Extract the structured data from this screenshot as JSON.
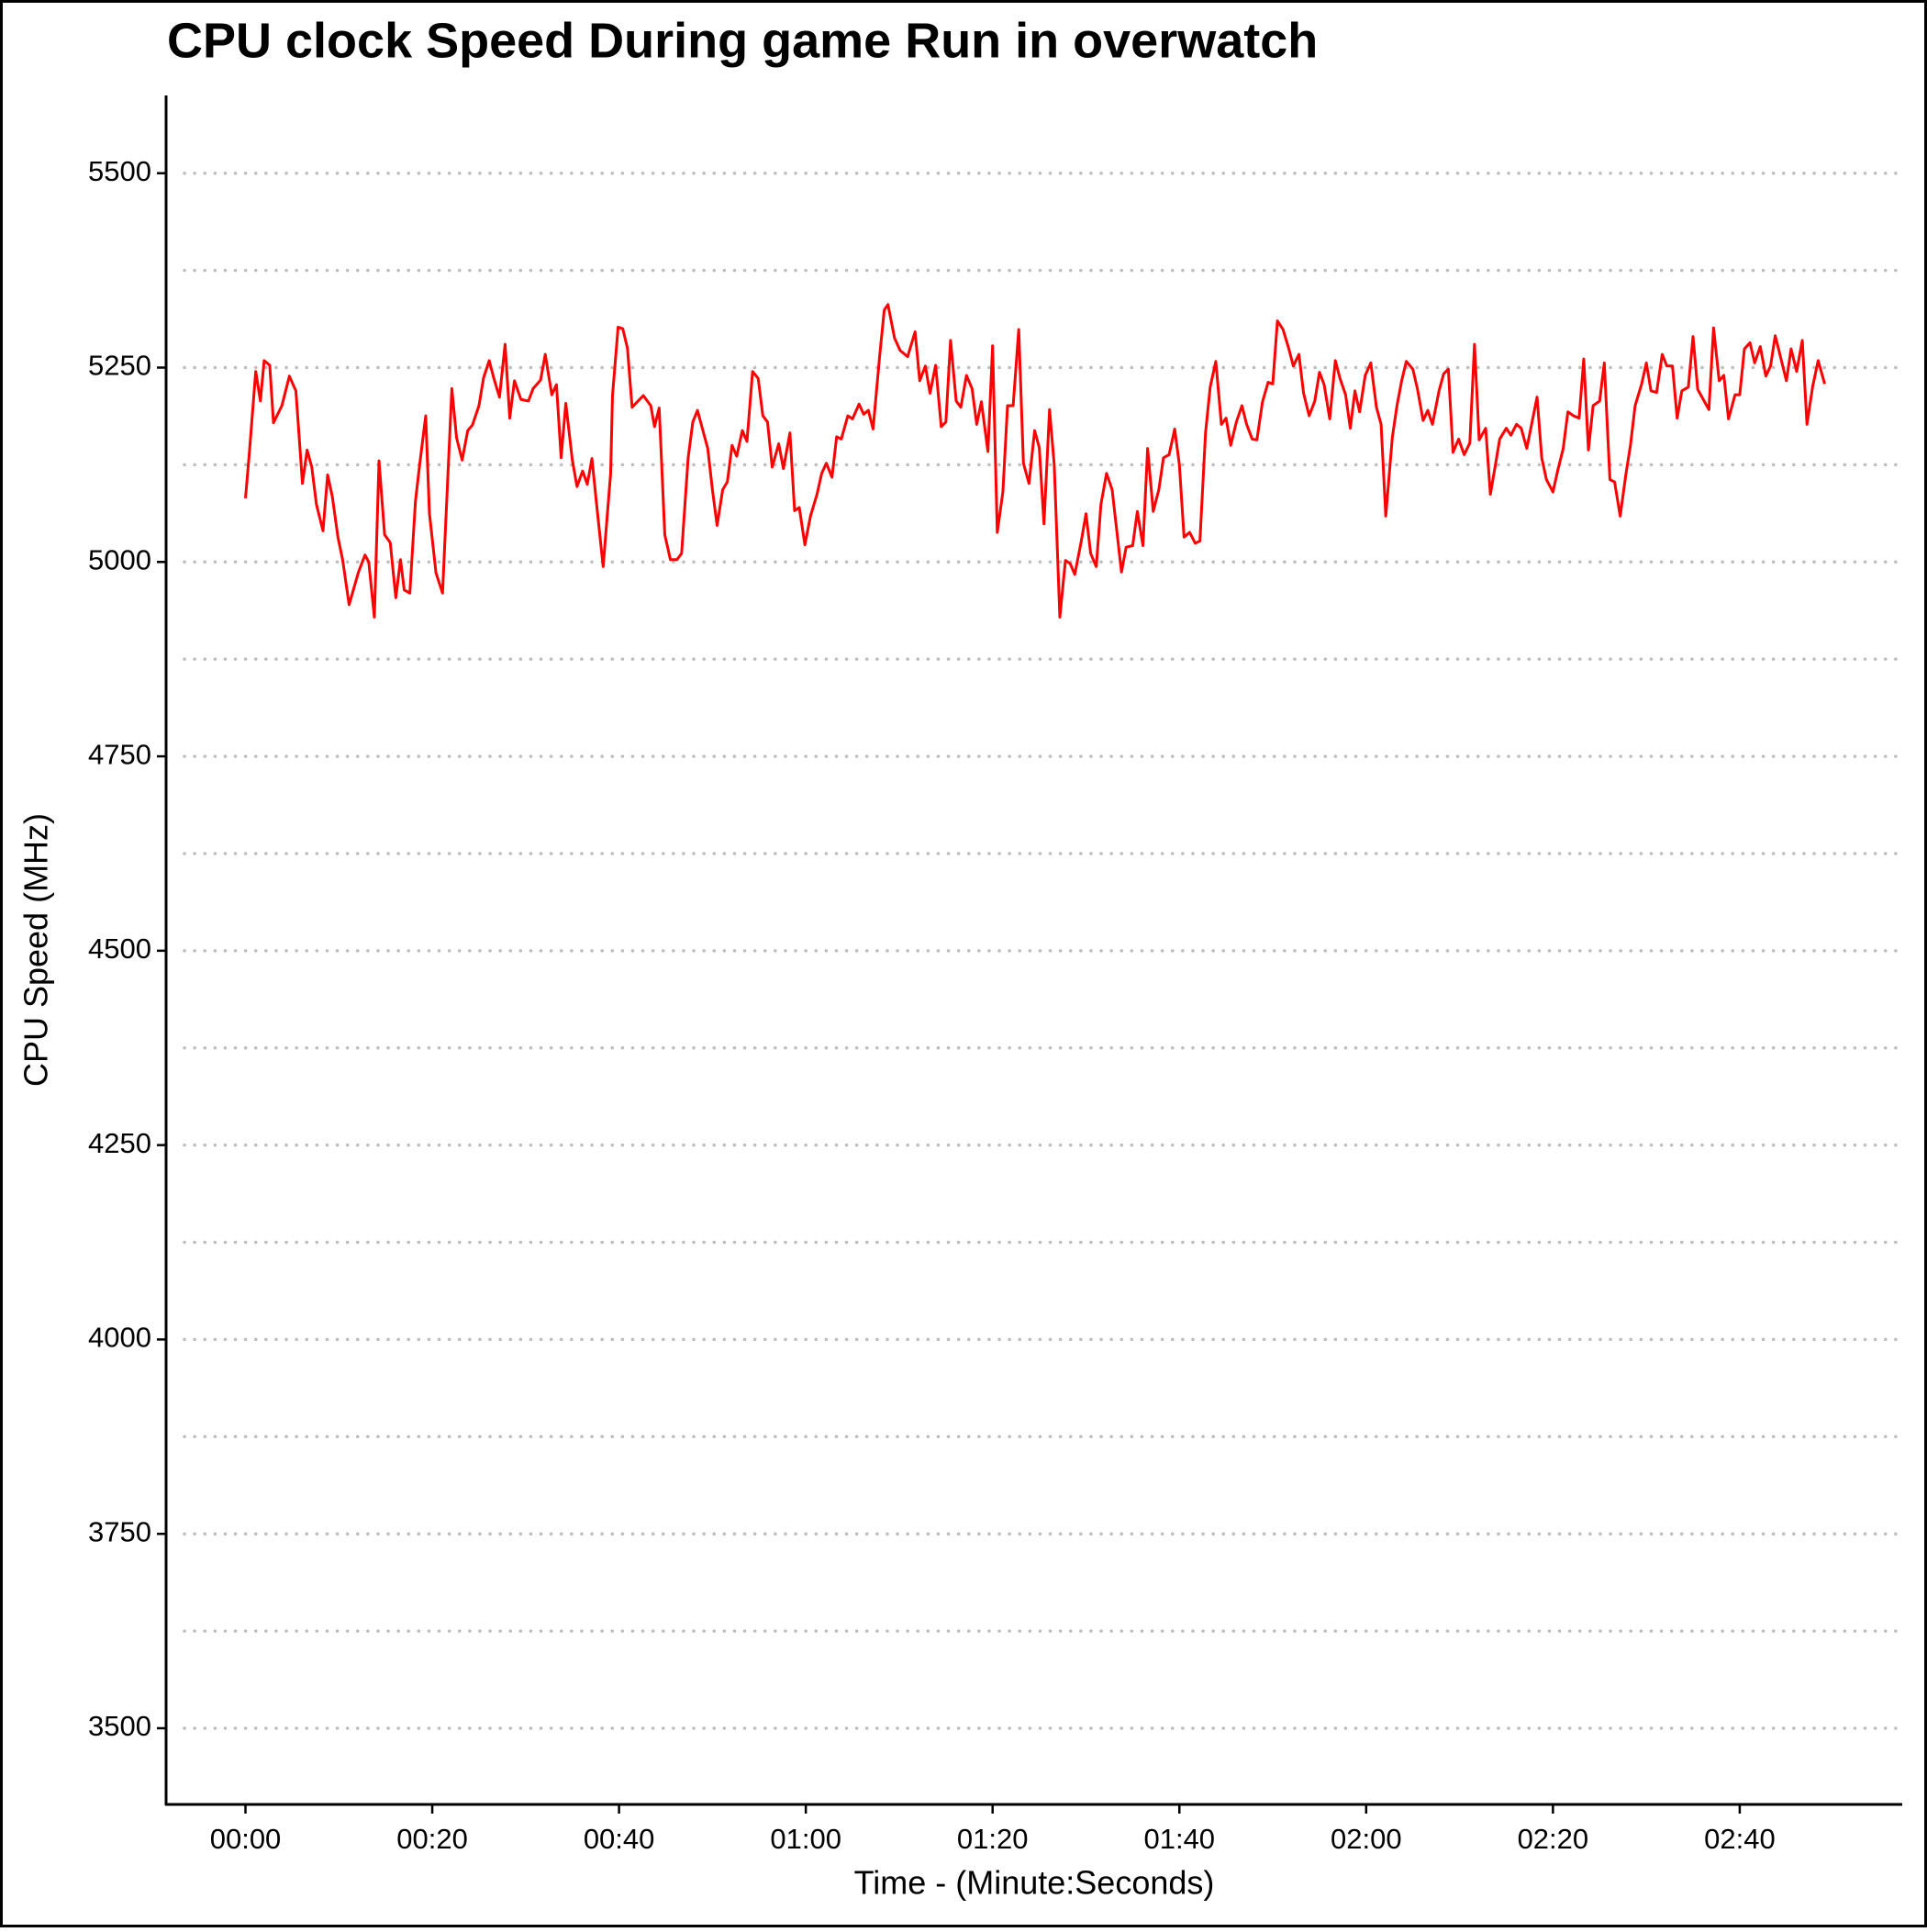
{
  "chart_data": {
    "type": "line",
    "title": "CPU clock Speed During game Run in overwatch",
    "x_label": "Time - (Minute:Seconds)",
    "y_label": "CPU Speed (MHz)",
    "color": "#ff0000",
    "grid": true,
    "xlim": [
      -8.5,
      177.4
    ],
    "ylim": [
      3402,
      5600
    ],
    "xticks": [
      {
        "value": 0,
        "label": "00:00"
      },
      {
        "value": 20,
        "label": "00:20"
      },
      {
        "value": 40,
        "label": "00:40"
      },
      {
        "value": 60,
        "label": "01:00"
      },
      {
        "value": 80,
        "label": "01:20"
      },
      {
        "value": 100,
        "label": "01:40"
      },
      {
        "value": 120,
        "label": "02:00"
      },
      {
        "value": 140,
        "label": "02:20"
      },
      {
        "value": 160,
        "label": "02:40"
      }
    ],
    "yticks": [
      3500,
      3750,
      4000,
      4250,
      4500,
      4750,
      5000,
      5250,
      5500
    ],
    "y_minor_ticks": [
      3625,
      3875,
      4125,
      4375,
      4625,
      4875,
      5125,
      5375
    ],
    "x": [
      0,
      0.4,
      1.1,
      1.6,
      2.0,
      2.6,
      3.0,
      3.9,
      4.7,
      5.4,
      6.1,
      6.6,
      7.1,
      7.6,
      8.3,
      8.8,
      9.3,
      9.9,
      10.4,
      11.1,
      12.1,
      12.8,
      13.2,
      13.8,
      14.3,
      14.9,
      15.5,
      16.1,
      16.6,
      17.0,
      17.6,
      18.2,
      18.7,
      19.3,
      19.7,
      20.4,
      21.1,
      22.1,
      22.6,
      23.2,
      23.8,
      24.3,
      25.0,
      25.5,
      26.1,
      26.6,
      27.2,
      27.8,
      28.3,
      28.8,
      29.5,
      30.3,
      30.8,
      31.6,
      32.1,
      32.8,
      33.3,
      33.8,
      34.3,
      35.0,
      35.5,
      36.1,
      36.6,
      37.1,
      37.6,
      38.3,
      39.1,
      39.3,
      39.9,
      40.4,
      40.9,
      41.4,
      42.6,
      43.4,
      43.8,
      44.3,
      44.9,
      45.5,
      46.2,
      46.7,
      47.4,
      47.9,
      48.4,
      49.5,
      50.0,
      50.5,
      51.1,
      51.6,
      52.1,
      52.6,
      53.2,
      53.7,
      54.3,
      54.9,
      55.4,
      55.9,
      56.4,
      57.1,
      57.6,
      58.3,
      58.8,
      59.3,
      59.9,
      60.5,
      61.2,
      61.7,
      62.2,
      62.8,
      63.3,
      63.8,
      64.5,
      65.0,
      65.7,
      66.2,
      66.7,
      67.2,
      67.9,
      68.4,
      68.8,
      69.5,
      70.1,
      70.9,
      71.7,
      72.2,
      72.8,
      73.3,
      73.9,
      74.5,
      75.0,
      75.5,
      76.1,
      76.6,
      77.2,
      77.8,
      78.3,
      78.8,
      79.5,
      80.0,
      80.5,
      81.1,
      81.6,
      82.2,
      82.8,
      83.3,
      83.9,
      84.5,
      85.0,
      85.5,
      86.1,
      86.6,
      87.2,
      87.8,
      88.3,
      88.8,
      89.5,
      90.0,
      90.5,
      91.1,
      91.6,
      92.2,
      92.8,
      93.3,
      93.8,
      94.3,
      95.0,
      95.5,
      96.1,
      96.6,
      97.2,
      97.8,
      98.3,
      98.9,
      99.5,
      100.0,
      100.5,
      101.1,
      101.7,
      102.2,
      102.8,
      103.3,
      103.9,
      104.5,
      105.0,
      105.5,
      106.1,
      106.7,
      107.2,
      107.8,
      108.3,
      108.9,
      109.5,
      110.0,
      110.5,
      111.1,
      111.7,
      112.2,
      112.8,
      113.3,
      113.9,
      114.5,
      115.0,
      115.5,
      116.1,
      116.7,
      117.2,
      117.8,
      118.3,
      118.8,
      119.3,
      119.9,
      120.5,
      121.1,
      121.6,
      122.1,
      122.8,
      123.3,
      123.8,
      124.3,
      125.0,
      125.5,
      126.1,
      126.6,
      127.1,
      127.8,
      128.3,
      128.8,
      129.3,
      129.9,
      130.5,
      131.1,
      131.6,
      132.1,
      132.8,
      133.3,
      133.8,
      134.3,
      135.0,
      135.5,
      136.1,
      136.6,
      137.2,
      137.8,
      138.3,
      138.8,
      139.3,
      140.0,
      140.5,
      141.1,
      141.6,
      142.2,
      142.8,
      143.3,
      143.8,
      144.3,
      145.0,
      145.5,
      146.1,
      146.6,
      147.2,
      147.8,
      148.3,
      148.8,
      149.5,
      150.0,
      150.5,
      151.1,
      151.7,
      152.2,
      152.8,
      153.3,
      153.8,
      154.5,
      155.0,
      155.5,
      156.1,
      156.7,
      157.2,
      157.8,
      158.3,
      158.8,
      159.5,
      160.0,
      160.5,
      161.1,
      161.6,
      162.2,
      162.8,
      163.3,
      163.8,
      164.3,
      165.0,
      165.5,
      166.1,
      166.7,
      167.2,
      167.8,
      168.4,
      169.1
    ],
    "values": [
      5082,
      5138,
      5245,
      5207,
      5259,
      5253,
      5179,
      5201,
      5239,
      5220,
      5101,
      5144,
      5122,
      5074,
      5040,
      5112,
      5084,
      5032,
      5003,
      4945,
      4987,
      5009,
      5000,
      4929,
      5130,
      5035,
      5025,
      4954,
      5003,
      4964,
      4960,
      5078,
      5130,
      5188,
      5062,
      4986,
      4960,
      5223,
      5160,
      5131,
      5169,
      5176,
      5201,
      5237,
      5259,
      5236,
      5212,
      5280,
      5185,
      5233,
      5209,
      5207,
      5223,
      5234,
      5267,
      5215,
      5228,
      5134,
      5204,
      5131,
      5097,
      5117,
      5100,
      5133,
      5074,
      4994,
      5114,
      5214,
      5302,
      5300,
      5275,
      5199,
      5214,
      5201,
      5174,
      5198,
      5035,
      5003,
      5003,
      5011,
      5134,
      5180,
      5195,
      5146,
      5093,
      5047,
      5093,
      5103,
      5150,
      5136,
      5169,
      5155,
      5245,
      5236,
      5188,
      5180,
      5122,
      5152,
      5120,
      5166,
      5066,
      5070,
      5022,
      5059,
      5087,
      5114,
      5127,
      5109,
      5161,
      5158,
      5188,
      5184,
      5203,
      5190,
      5195,
      5171,
      5264,
      5324,
      5331,
      5288,
      5272,
      5264,
      5296,
      5233,
      5252,
      5217,
      5253,
      5174,
      5180,
      5285,
      5207,
      5199,
      5240,
      5223,
      5177,
      5206,
      5142,
      5278,
      5038,
      5090,
      5201,
      5201,
      5299,
      5127,
      5101,
      5169,
      5147,
      5049,
      5196,
      5125,
      4929,
      5002,
      4998,
      4984,
      5027,
      5062,
      5011,
      4994,
      5074,
      5114,
      5093,
      5040,
      4987,
      5019,
      5021,
      5065,
      5021,
      5146,
      5065,
      5093,
      5134,
      5138,
      5171,
      5125,
      5032,
      5038,
      5024,
      5027,
      5166,
      5225,
      5258,
      5177,
      5185,
      5150,
      5180,
      5201,
      5177,
      5158,
      5157,
      5206,
      5231,
      5229,
      5310,
      5299,
      5275,
      5252,
      5267,
      5217,
      5188,
      5207,
      5244,
      5228,
      5184,
      5259,
      5236,
      5215,
      5172,
      5220,
      5193,
      5240,
      5256,
      5199,
      5177,
      5059,
      5160,
      5201,
      5233,
      5258,
      5248,
      5222,
      5182,
      5195,
      5177,
      5220,
      5242,
      5248,
      5141,
      5158,
      5138,
      5153,
      5280,
      5157,
      5172,
      5087,
      5122,
      5158,
      5172,
      5163,
      5177,
      5172,
      5146,
      5182,
      5212,
      5134,
      5106,
      5090,
      5117,
      5146,
      5193,
      5188,
      5185,
      5261,
      5144,
      5201,
      5207,
      5256,
      5106,
      5103,
      5059,
      5112,
      5150,
      5201,
      5229,
      5256,
      5220,
      5218,
      5267,
      5252,
      5252,
      5185,
      5220,
      5225,
      5290,
      5222,
      5209,
      5196,
      5301,
      5233,
      5240,
      5184,
      5215,
      5215,
      5274,
      5282,
      5256,
      5277,
      5239,
      5252,
      5291,
      5267,
      5233,
      5274,
      5245,
      5285,
      5177,
      5225,
      5259,
      5229
    ]
  }
}
